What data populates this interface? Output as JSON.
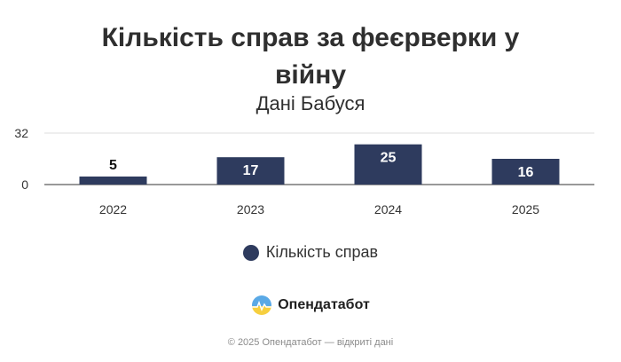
{
  "chart_data": {
    "type": "bar",
    "title": "Кількість справ за феєрверки у війну",
    "subtitle": "Дані Бабуся",
    "categories": [
      "2022",
      "2023",
      "2024",
      "2025"
    ],
    "series": [
      {
        "name": "Кількість справ",
        "values": [
          5,
          17,
          25,
          16
        ],
        "color": "#2e3b5e"
      }
    ],
    "y_ticks": [
      "0",
      "32"
    ],
    "ylim": [
      0,
      32
    ],
    "grid": true,
    "legend_position": "bottom-center"
  },
  "brand": {
    "name": "Опендатабот",
    "icon": "opendatabot-logo-icon"
  },
  "footer": {
    "text": "© 2025 Опендатабот — відкриті дані"
  }
}
